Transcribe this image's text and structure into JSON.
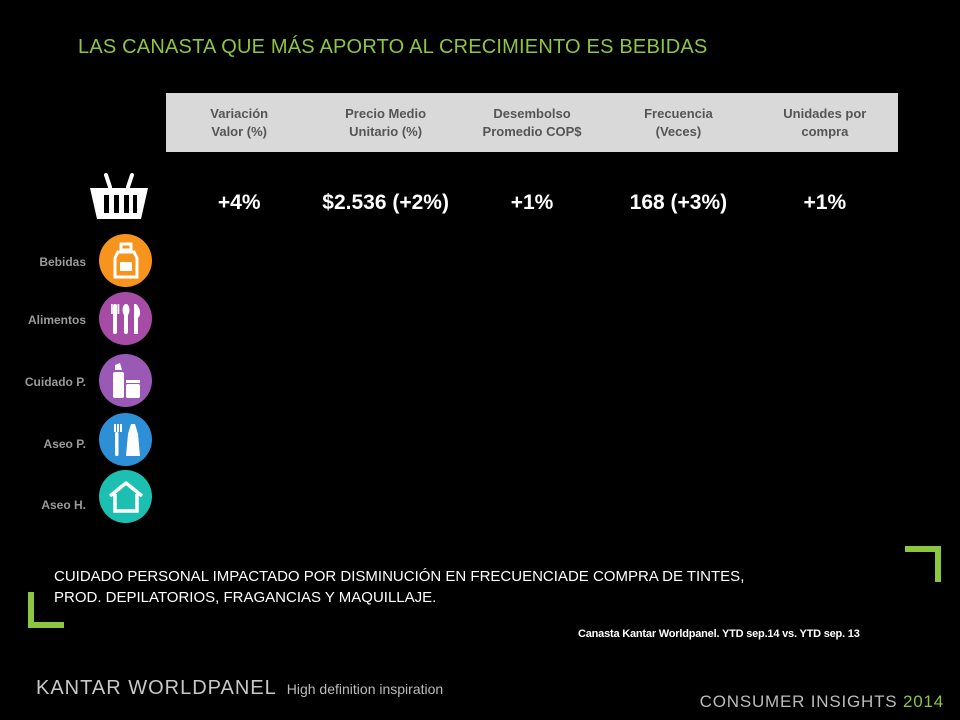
{
  "title": "LAS CANASTA QUE MÁS APORTO  AL CRECIMIENTO ES BEBIDAS",
  "table": {
    "headers": [
      "Variación\nValor (%)",
      "Precio Medio\nUnitario (%)",
      "Desembolso\nPromedio COP$",
      "Frecuencia\n(Veces)",
      "Unidades por\ncompra"
    ],
    "total_row": [
      "+4%",
      "$2.536 (+2%)",
      "+1%",
      "168 (+3%)",
      "+1%"
    ]
  },
  "categories": [
    {
      "label": "Bebidas",
      "icon": "bottle-icon",
      "color": "#f7941d"
    },
    {
      "label": "Alimentos",
      "icon": "cutlery-icon",
      "color": "#a64ca6"
    },
    {
      "label": "Cuidado P.",
      "icon": "personal-care-icon",
      "color": "#9b59b6"
    },
    {
      "label": "Aseo P.",
      "icon": "toothbrush-icon",
      "color": "#2d8fd5"
    },
    {
      "label": "Aseo H.",
      "icon": "house-icon",
      "color": "#1cbfb0"
    }
  ],
  "note": "CUIDADO PERSONAL IMPACTADO POR  DISMINUCIÓN EN FRECUENCIADE COMPRA DE TINTES,\nPROD. DEPILATORIOS, FRAGANCIAS Y MAQUILLAJE.",
  "source": "Canasta Kantar Worldpanel. YTD sep.14 vs. YTD  sep. 13",
  "footer": {
    "brand": "KANTAR WORLDPANEL",
    "tagline": "High definition inspiration",
    "right_text": "CONSUMER INSIGHTS",
    "right_year": "2014"
  },
  "colors": {
    "accent": "#8dc63f",
    "header_bg": "#d9d9d9"
  }
}
